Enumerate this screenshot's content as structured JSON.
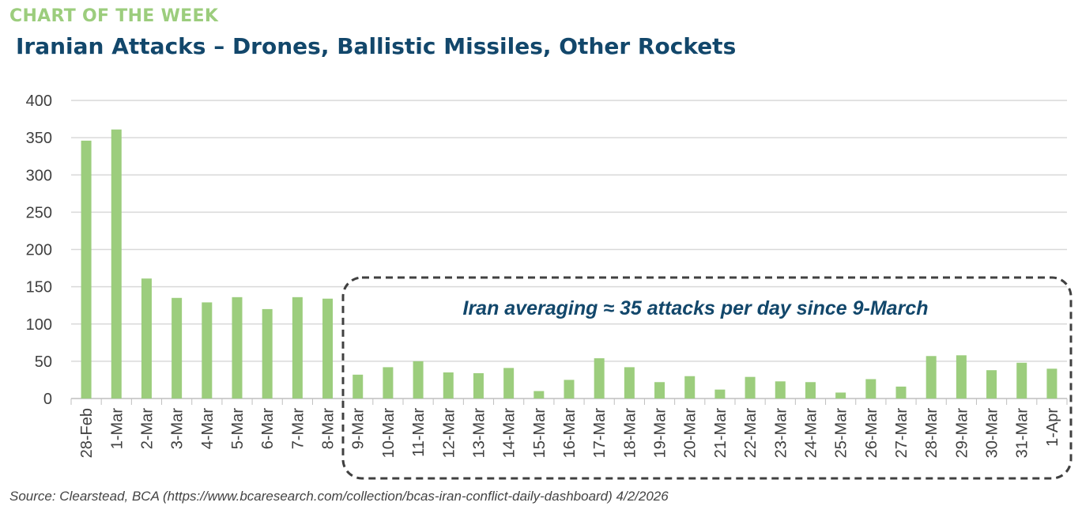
{
  "header": {
    "kicker": "CHART OF THE WEEK"
  },
  "chart_data": {
    "type": "bar",
    "title": "Iranian Attacks – Drones, Ballistic Missiles, Other Rockets",
    "xlabel": "",
    "ylabel": "",
    "ylim": [
      0,
      400
    ],
    "yticks": [
      0,
      50,
      100,
      150,
      200,
      250,
      300,
      350,
      400
    ],
    "grid": true,
    "categories": [
      "28-Feb",
      "1-Mar",
      "2-Mar",
      "3-Mar",
      "4-Mar",
      "5-Mar",
      "6-Mar",
      "7-Mar",
      "8-Mar",
      "9-Mar",
      "10-Mar",
      "11-Mar",
      "12-Mar",
      "13-Mar",
      "14-Mar",
      "15-Mar",
      "16-Mar",
      "17-Mar",
      "18-Mar",
      "19-Mar",
      "20-Mar",
      "21-Mar",
      "22-Mar",
      "23-Mar",
      "24-Mar",
      "25-Mar",
      "26-Mar",
      "27-Mar",
      "28-Mar",
      "29-Mar",
      "30-Mar",
      "31-Mar",
      "1-Apr"
    ],
    "values": [
      346,
      361,
      161,
      135,
      129,
      136,
      120,
      136,
      134,
      32,
      42,
      50,
      35,
      34,
      41,
      10,
      25,
      54,
      42,
      22,
      30,
      12,
      29,
      23,
      22,
      8,
      26,
      16,
      57,
      58,
      38,
      48,
      40
    ],
    "bar_color": "#9ccd7d",
    "annotation": "Iran averaging ≈ 35 attacks per day since 9-March",
    "annotation_color": "#12476b"
  },
  "source": "Source: Clearstead, BCA (https://www.bcaresearch.com/collection/bcas-iran-conflict-daily-dashboard)  4/2/2026"
}
